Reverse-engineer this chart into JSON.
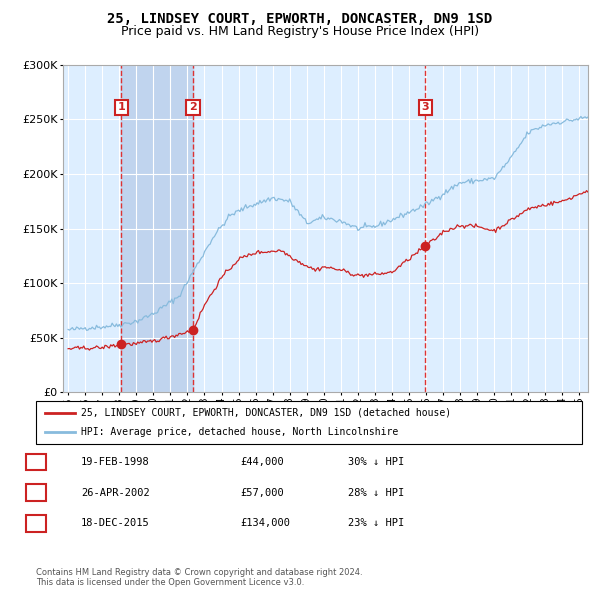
{
  "title": "25, LINDSEY COURT, EPWORTH, DONCASTER, DN9 1SD",
  "subtitle": "Price paid vs. HM Land Registry's House Price Index (HPI)",
  "legend_property": "25, LINDSEY COURT, EPWORTH, DONCASTER, DN9 1SD (detached house)",
  "legend_hpi": "HPI: Average price, detached house, North Lincolnshire",
  "copyright": "Contains HM Land Registry data © Crown copyright and database right 2024.\nThis data is licensed under the Open Government Licence v3.0.",
  "sale_dates_num": [
    1998.13,
    2002.32,
    2015.96
  ],
  "sale_prices": [
    44000,
    57000,
    134000
  ],
  "sale_labels": [
    "1",
    "2",
    "3"
  ],
  "sale_table": [
    [
      "1",
      "19-FEB-1998",
      "£44,000",
      "30% ↓ HPI"
    ],
    [
      "2",
      "26-APR-2002",
      "£57,000",
      "28% ↓ HPI"
    ],
    [
      "3",
      "18-DEC-2015",
      "£134,000",
      "23% ↓ HPI"
    ]
  ],
  "year_start": 1995,
  "year_end": 2025,
  "ymax": 300000,
  "bg_color": "#ddeeff",
  "grid_color": "#ffffff",
  "hpi_color": "#88bbdd",
  "price_color": "#cc2222",
  "vline_color": "#dd3333",
  "shade_color": "#c0d4ee",
  "title_fontsize": 10,
  "subtitle_fontsize": 9
}
